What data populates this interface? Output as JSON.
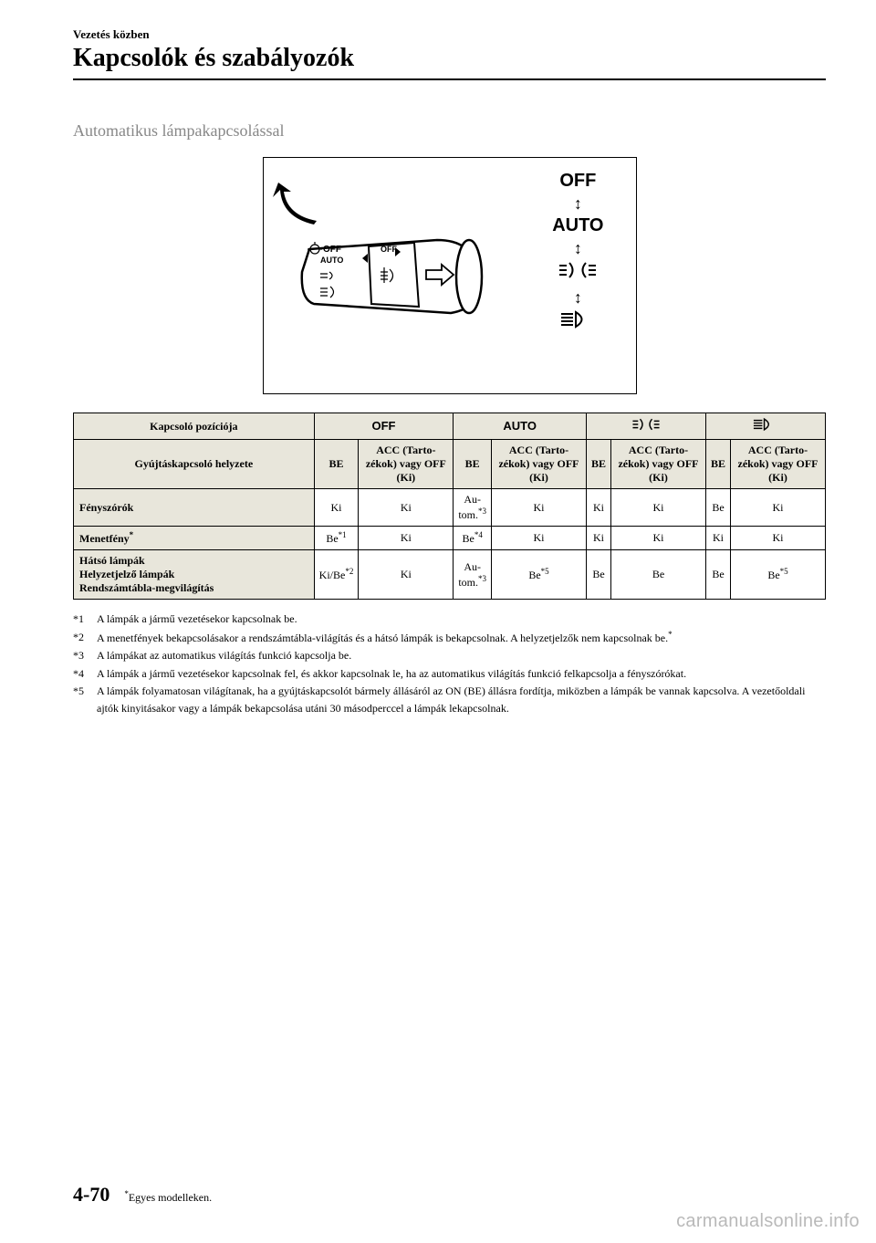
{
  "header": {
    "small": "Vezetés közben",
    "large": "Kapcsolók és szabályozók"
  },
  "subheading": "Automatikus lámpakapcsolással",
  "diagram": {
    "positions": [
      "OFF",
      "AUTO"
    ],
    "arrow_glyph": "↕",
    "parking_icon": "⋺⦇⦈⋺",
    "headlight_icon": "≣⊃"
  },
  "table": {
    "header_row1_label": "Kapcsoló pozíciója",
    "header_row1_cols": [
      "OFF",
      "AUTO",
      "PARKING",
      "HEADLIGHT"
    ],
    "header_row2_label": "Gyújtáskapcsoló helyzete",
    "header_row2_sub": [
      "BE",
      "ACC (Tarto-zékok) vagy OFF (Ki)"
    ],
    "rows": [
      {
        "label": "Fényszórók",
        "cells": [
          "Ki",
          "Ki",
          "Au-tom.",
          "Ki",
          "Ki",
          "Ki",
          "Be",
          "Ki"
        ],
        "sups": [
          "",
          "",
          "*3",
          "",
          "",
          "",
          "",
          ""
        ]
      },
      {
        "label": "Menetfény",
        "label_sup": "*",
        "cells": [
          "Be",
          "Ki",
          "Be",
          "Ki",
          "Ki",
          "Ki",
          "Ki",
          "Ki"
        ],
        "sups": [
          "*1",
          "",
          "*4",
          "",
          "",
          "",
          "",
          ""
        ]
      },
      {
        "label": "Hátsó lámpák\nHelyzetjelző lámpák\nRendszámtábla-megvilágítás",
        "cells": [
          "Ki/Be",
          "Ki",
          "Au-tom.",
          "Be",
          "Be",
          "Be",
          "Be",
          "Be"
        ],
        "sups": [
          "*2",
          "",
          "*3",
          "*5",
          "",
          "",
          "",
          "*5"
        ]
      }
    ]
  },
  "footnotes": [
    {
      "marker": "*1",
      "text": "A lámpák a jármű vezetésekor kapcsolnak be."
    },
    {
      "marker": "*2",
      "text": "A menetfények bekapcsolásakor a rendszámtábla-világítás és a hátsó lámpák is bekapcsolnak. A helyzetjelzők nem kapcsolnak be.",
      "trail_sup": "*"
    },
    {
      "marker": "*3",
      "text": "A lámpákat az automatikus világítás funkció kapcsolja be."
    },
    {
      "marker": "*4",
      "text": "A lámpák a jármű vezetésekor kapcsolnak fel, és akkor kapcsolnak le, ha az automatikus világítás funkció felkapcsolja a fényszórókat."
    },
    {
      "marker": "*5",
      "text": "A lámpák folyamatosan világítanak, ha a gyújtáskapcsolót bármely állásáról az ON (BE) állásra fordítja, miközben a lámpák be vannak kapcsolva. A vezetőoldali ajtók kinyitásakor vagy a lámpák bekapcsolása utáni 30 másodperccel a lámpák lekapcsolnak."
    }
  ],
  "footer": {
    "page": "4-70",
    "note_star": "*",
    "note": "Egyes modelleken."
  },
  "watermark": "carmanualsonline.info"
}
